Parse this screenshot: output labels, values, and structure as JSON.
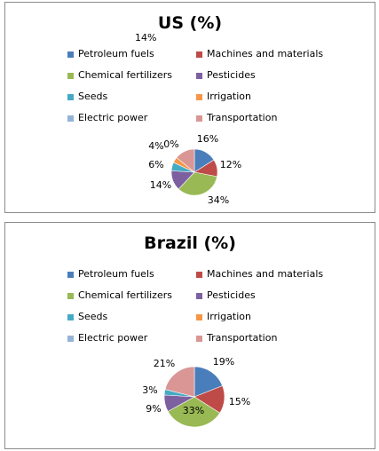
{
  "chart_data": [
    {
      "type": "pie",
      "title": "US (%)",
      "categories": [
        "Petroleum fuels",
        "Machines and materials",
        "Chemical fertilizers",
        "Pesticides",
        "Seeds",
        "Irrigation",
        "Electric power",
        "Transportation"
      ],
      "values": [
        16,
        12,
        34,
        14,
        6,
        4,
        0,
        14
      ],
      "labels": [
        "16%",
        "12%",
        "34%",
        "14%",
        "6%",
        "4%",
        "0%",
        "14%"
      ],
      "legend_position": "top"
    },
    {
      "type": "pie",
      "title": "Brazil (%)",
      "categories": [
        "Petroleum fuels",
        "Machines and materials",
        "Chemical fertilizers",
        "Pesticides",
        "Seeds",
        "Irrigation",
        "Electric power",
        "Transportation"
      ],
      "values": [
        19,
        15,
        33,
        9,
        3,
        0,
        0,
        21
      ],
      "labels": [
        "19%",
        "15%",
        "33%",
        "9%",
        "3%",
        "",
        "",
        "21%"
      ],
      "legend_position": "top"
    }
  ],
  "colors": [
    "#4a7ebb",
    "#be4b48",
    "#98b954",
    "#7d60a0",
    "#46aac5",
    "#f79646",
    "#95b3d7",
    "#d99694"
  ]
}
